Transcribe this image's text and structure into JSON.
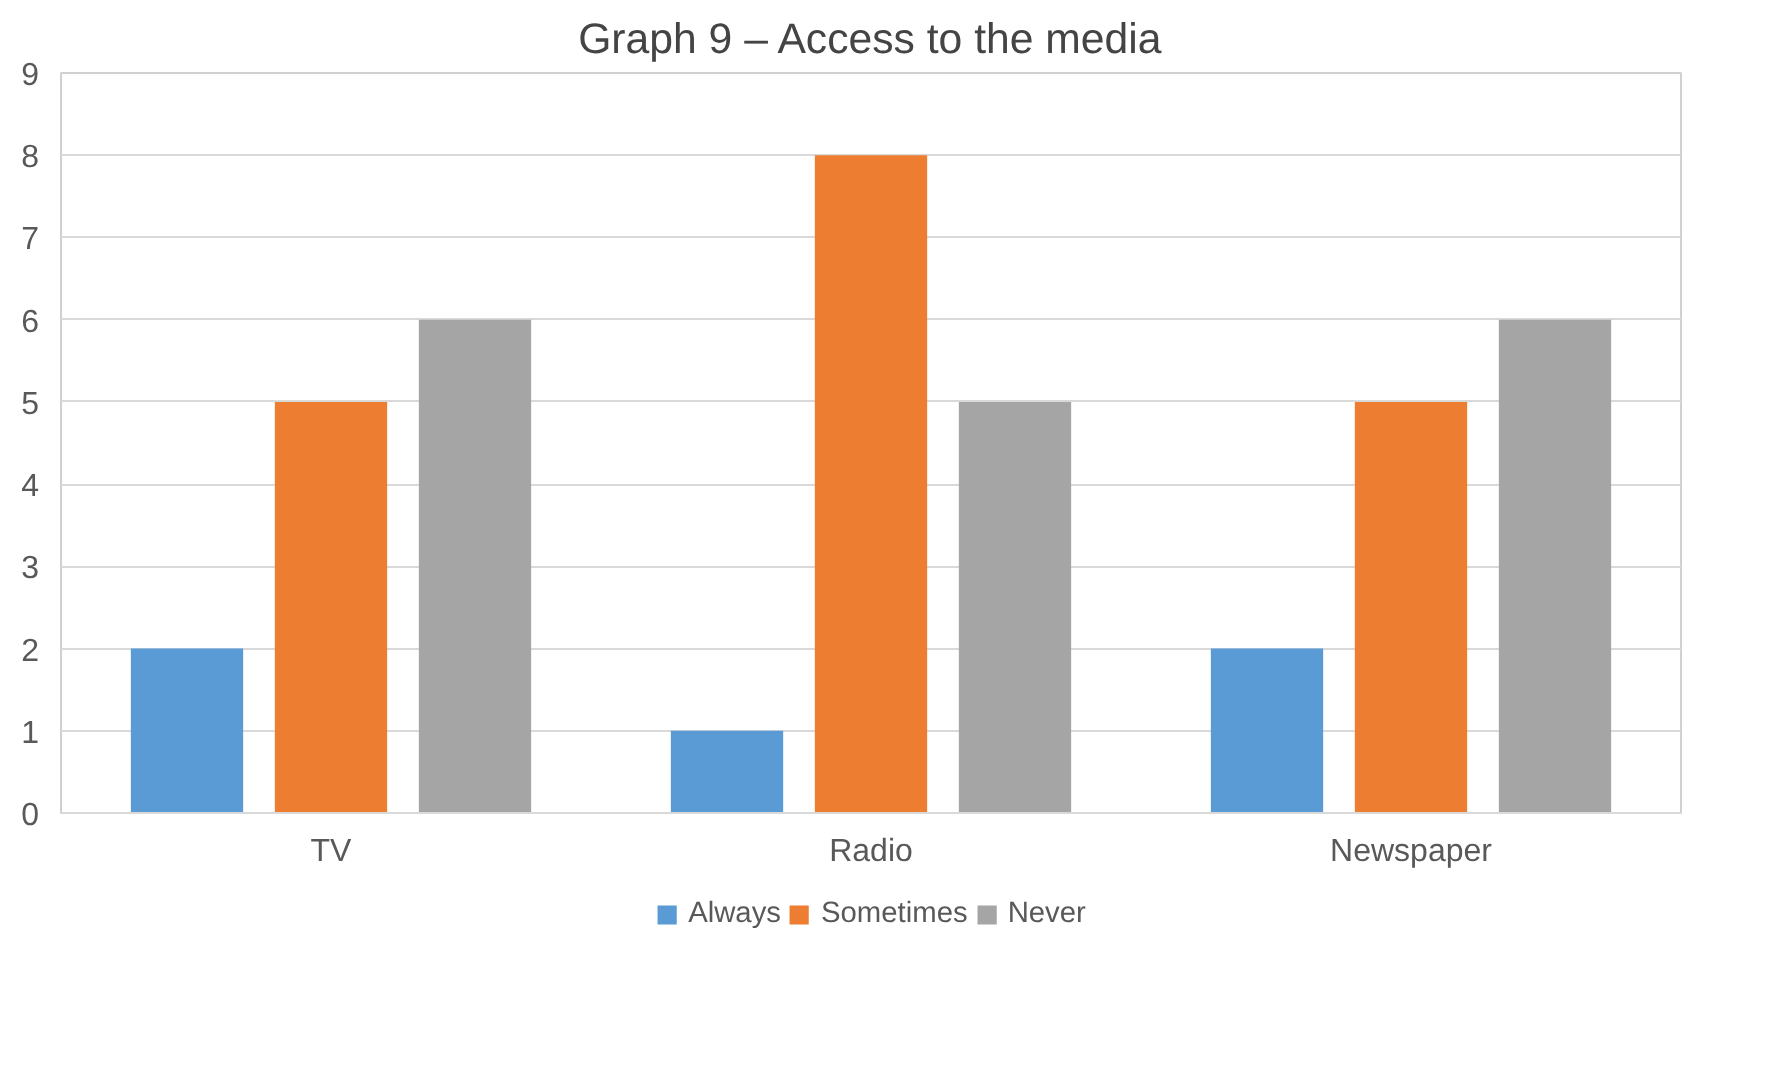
{
  "chart_data": {
    "type": "bar",
    "title": "Graph 9 – Access to the media",
    "categories": [
      "TV",
      "Radio",
      "Newspaper"
    ],
    "series": [
      {
        "name": "Always",
        "color": "#5b9bd5",
        "values": [
          2,
          1,
          2
        ]
      },
      {
        "name": "Sometimes",
        "color": "#ed7d31",
        "values": [
          5,
          8,
          5
        ]
      },
      {
        "name": "Never",
        "color": "#a5a5a5",
        "values": [
          6,
          5,
          6
        ]
      }
    ],
    "ylim": [
      0,
      9
    ],
    "yticks": [
      0,
      1,
      2,
      3,
      4,
      5,
      6,
      7,
      8,
      9
    ],
    "grid": "y",
    "legend": "bottom"
  }
}
